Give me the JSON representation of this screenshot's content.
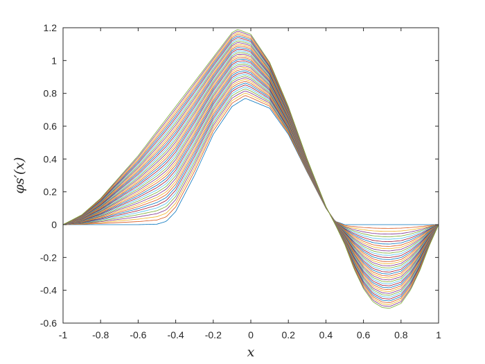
{
  "chart_data": {
    "type": "line",
    "title": "",
    "xlabel": "x",
    "ylabel": "φs′(x)",
    "xlim": [
      -1,
      1
    ],
    "ylim": [
      -0.6,
      1.2
    ],
    "grid": false,
    "legend": "none",
    "x_ticks": [
      "-1",
      "-0.8",
      "-0.6",
      "-0.4",
      "-0.2",
      "0",
      "0.2",
      "0.4",
      "0.6",
      "0.8",
      "1"
    ],
    "y_ticks": [
      "-0.6",
      "-0.4",
      "-0.2",
      "0",
      "0.2",
      "0.4",
      "0.6",
      "0.8",
      "1",
      "1.2"
    ],
    "series_count": 40,
    "series_colors": [
      "#0072BD",
      "#D95319",
      "#EDB120",
      "#7E2F8E",
      "#77AC30",
      "#4DBEEE",
      "#A2142F"
    ],
    "envelope": {
      "first_curve": {
        "x": [
          -1,
          -0.6,
          -0.5,
          -0.45,
          -0.4,
          -0.3,
          -0.2,
          -0.1,
          -0.03,
          0.1,
          0.2,
          0.3,
          0.4,
          0.45,
          0.5,
          0.55,
          0.6,
          0.7,
          0.8,
          1
        ],
        "y": [
          0,
          0,
          0.003,
          0.02,
          0.08,
          0.3,
          0.55,
          0.72,
          0.77,
          0.71,
          0.55,
          0.32,
          0.1,
          0.02,
          0,
          0,
          0,
          0,
          0,
          0
        ]
      },
      "last_curve": {
        "x": [
          -1,
          -0.9,
          -0.8,
          -0.6,
          -0.4,
          -0.2,
          -0.1,
          -0.07,
          0,
          0.1,
          0.2,
          0.3,
          0.4,
          0.45,
          0.5,
          0.55,
          0.6,
          0.65,
          0.7,
          0.74,
          0.8,
          0.85,
          0.9,
          0.95,
          1
        ],
        "y": [
          0,
          0.06,
          0.16,
          0.42,
          0.72,
          1.02,
          1.17,
          1.19,
          1.16,
          0.99,
          0.72,
          0.4,
          0.11,
          0,
          -0.12,
          -0.27,
          -0.39,
          -0.47,
          -0.505,
          -0.51,
          -0.48,
          -0.4,
          -0.28,
          -0.13,
          0
        ]
      }
    }
  }
}
